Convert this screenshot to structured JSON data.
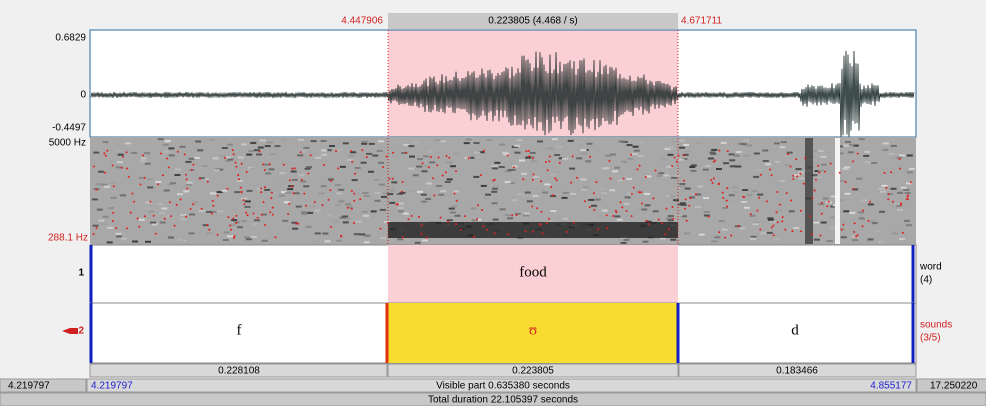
{
  "selection": {
    "start": "4.447906",
    "duration": "0.223805 (4.468 / s)",
    "end": "4.671711"
  },
  "waveform": {
    "max": "0.6829",
    "zero": "0",
    "min": "-0.4497"
  },
  "spectrogram": {
    "max": "5000 Hz",
    "min": "288.1 Hz"
  },
  "tiers": [
    {
      "number": "1",
      "name": "word",
      "count": "(4)",
      "intervals": [
        "food"
      ]
    },
    {
      "number": "2",
      "name": "sounds",
      "count": "(3/5)",
      "intervals": [
        "f",
        "ʊ",
        "d"
      ]
    }
  ],
  "durations": [
    "0.228108",
    "0.223805",
    "0.183466"
  ],
  "window": {
    "left_total": "4.219797",
    "left_visible": "4.219797",
    "visible": "Visible part 0.635380 seconds",
    "right_visible": "4.855177",
    "right_total": "17.250220",
    "total": "Total duration 22.105397 seconds"
  }
}
